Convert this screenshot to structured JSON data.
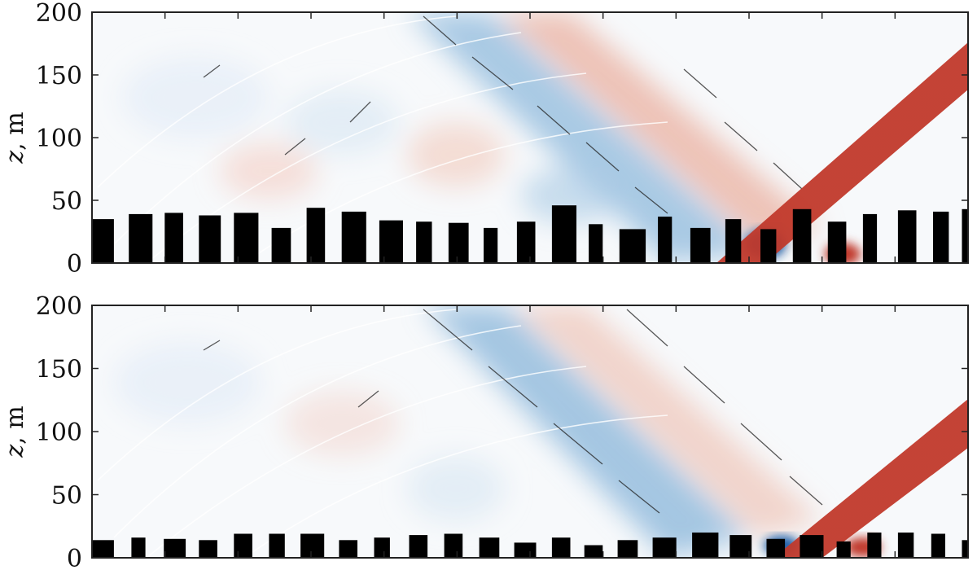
{
  "chart_data": [
    {
      "type": "heatmap",
      "title": "",
      "xlabel": "",
      "ylabel": "z, m",
      "ylabel_var": "z",
      "ylabel_unit": ", m",
      "ylim": [
        0,
        200
      ],
      "yticks": [
        0,
        50,
        100,
        150,
        200
      ],
      "xtick_count": 11,
      "colormap": "diverging red-blue",
      "buildings": [
        {
          "left": 0.0,
          "width": 0.025,
          "height": 35
        },
        {
          "left": 0.042,
          "width": 0.027,
          "height": 39
        },
        {
          "left": 0.083,
          "width": 0.021,
          "height": 40
        },
        {
          "left": 0.122,
          "width": 0.025,
          "height": 38
        },
        {
          "left": 0.162,
          "width": 0.028,
          "height": 40
        },
        {
          "left": 0.205,
          "width": 0.022,
          "height": 28
        },
        {
          "left": 0.245,
          "width": 0.021,
          "height": 44
        },
        {
          "left": 0.285,
          "width": 0.028,
          "height": 41
        },
        {
          "left": 0.328,
          "width": 0.027,
          "height": 34
        },
        {
          "left": 0.37,
          "width": 0.018,
          "height": 33
        },
        {
          "left": 0.407,
          "width": 0.023,
          "height": 32
        },
        {
          "left": 0.447,
          "width": 0.016,
          "height": 28
        },
        {
          "left": 0.485,
          "width": 0.021,
          "height": 33
        },
        {
          "left": 0.525,
          "width": 0.028,
          "height": 46
        },
        {
          "left": 0.567,
          "width": 0.016,
          "height": 31
        },
        {
          "left": 0.602,
          "width": 0.03,
          "height": 27
        },
        {
          "left": 0.646,
          "width": 0.016,
          "height": 37
        },
        {
          "left": 0.683,
          "width": 0.023,
          "height": 28
        },
        {
          "left": 0.723,
          "width": 0.018,
          "height": 35
        },
        {
          "left": 0.763,
          "width": 0.018,
          "height": 27
        },
        {
          "left": 0.8,
          "width": 0.021,
          "height": 43
        },
        {
          "left": 0.84,
          "width": 0.021,
          "height": 33
        },
        {
          "left": 0.88,
          "width": 0.016,
          "height": 39
        },
        {
          "left": 0.92,
          "width": 0.021,
          "height": 42
        },
        {
          "left": 0.96,
          "width": 0.018,
          "height": 41
        },
        {
          "left": 0.993,
          "width": 0.021,
          "height": 43
        }
      ]
    },
    {
      "type": "heatmap",
      "title": "",
      "xlabel": "",
      "ylabel": "z, m",
      "ylabel_var": "z",
      "ylabel_unit": ", m",
      "ylim": [
        0,
        200
      ],
      "yticks": [
        0,
        50,
        100,
        150,
        200
      ],
      "xtick_count": 11,
      "colormap": "diverging red-blue",
      "buildings": [
        {
          "left": 0.0,
          "width": 0.025,
          "height": 14
        },
        {
          "left": 0.045,
          "width": 0.016,
          "height": 16
        },
        {
          "left": 0.082,
          "width": 0.025,
          "height": 15
        },
        {
          "left": 0.122,
          "width": 0.021,
          "height": 14
        },
        {
          "left": 0.162,
          "width": 0.021,
          "height": 19
        },
        {
          "left": 0.202,
          "width": 0.018,
          "height": 19
        },
        {
          "left": 0.238,
          "width": 0.027,
          "height": 19
        },
        {
          "left": 0.282,
          "width": 0.021,
          "height": 14
        },
        {
          "left": 0.322,
          "width": 0.018,
          "height": 16
        },
        {
          "left": 0.362,
          "width": 0.021,
          "height": 18
        },
        {
          "left": 0.402,
          "width": 0.021,
          "height": 19
        },
        {
          "left": 0.442,
          "width": 0.023,
          "height": 16
        },
        {
          "left": 0.482,
          "width": 0.025,
          "height": 12
        },
        {
          "left": 0.525,
          "width": 0.021,
          "height": 16
        },
        {
          "left": 0.562,
          "width": 0.021,
          "height": 10
        },
        {
          "left": 0.6,
          "width": 0.023,
          "height": 14
        },
        {
          "left": 0.64,
          "width": 0.027,
          "height": 16
        },
        {
          "left": 0.685,
          "width": 0.03,
          "height": 20
        },
        {
          "left": 0.728,
          "width": 0.025,
          "height": 18
        },
        {
          "left": 0.77,
          "width": 0.021,
          "height": 15
        },
        {
          "left": 0.808,
          "width": 0.027,
          "height": 18
        },
        {
          "left": 0.85,
          "width": 0.016,
          "height": 13
        },
        {
          "left": 0.885,
          "width": 0.016,
          "height": 20
        },
        {
          "left": 0.92,
          "width": 0.018,
          "height": 20
        },
        {
          "left": 0.958,
          "width": 0.016,
          "height": 19
        },
        {
          "left": 0.993,
          "width": 0.021,
          "height": 14
        }
      ]
    }
  ],
  "colors": {
    "positive": "#c8473a",
    "negative": "#2f72b6",
    "building": "#000000",
    "frame": "#222222"
  }
}
